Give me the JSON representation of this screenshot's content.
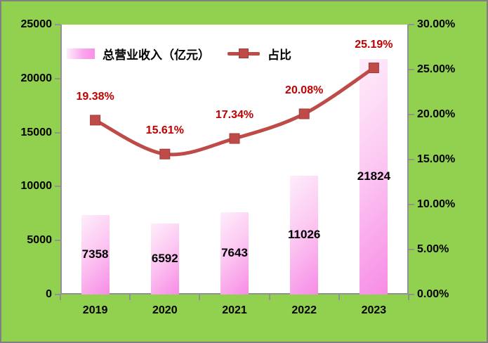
{
  "chart_data": {
    "type": "bar",
    "subtype": "bar-line-combo",
    "title": "",
    "categories": [
      "2019",
      "2020",
      "2021",
      "2022",
      "2023"
    ],
    "series": [
      {
        "name": "总营业收入（亿元）",
        "type": "bar",
        "axis": "left",
        "values": [
          7358,
          6592,
          7643,
          11026,
          21824
        ],
        "value_labels": [
          "7358",
          "6592",
          "7643",
          "11026",
          "21824"
        ]
      },
      {
        "name": "占比",
        "type": "line",
        "axis": "right",
        "values": [
          19.38,
          15.61,
          17.34,
          20.08,
          25.19
        ],
        "value_labels": [
          "19.38%",
          "15.61%",
          "17.34%",
          "20.08%",
          "25.19%"
        ]
      }
    ],
    "left_axis": {
      "min": 0,
      "max": 25000,
      "tick_labels": [
        "25000",
        "20000",
        "15000",
        "10000",
        "5000",
        "0"
      ]
    },
    "right_axis": {
      "min": 0,
      "max": 30,
      "tick_labels": [
        "30.00%",
        "25.00%",
        "20.00%",
        "15.00%",
        "10.00%",
        "5.00%",
        "0.00%"
      ]
    },
    "grid": false,
    "legend_position": "inside-top-left"
  },
  "colors": {
    "background_green": "#92D050",
    "outer_border_gray": "#808080",
    "axis_gray": "#929292",
    "bar_gradient_light": "#FEEDFA",
    "bar_gradient_dark": "#F78BE6",
    "line_red": "#BE4B48",
    "marker_border": "#A03C39",
    "pct_label_red": "#C00000",
    "text_black": "#000000"
  }
}
